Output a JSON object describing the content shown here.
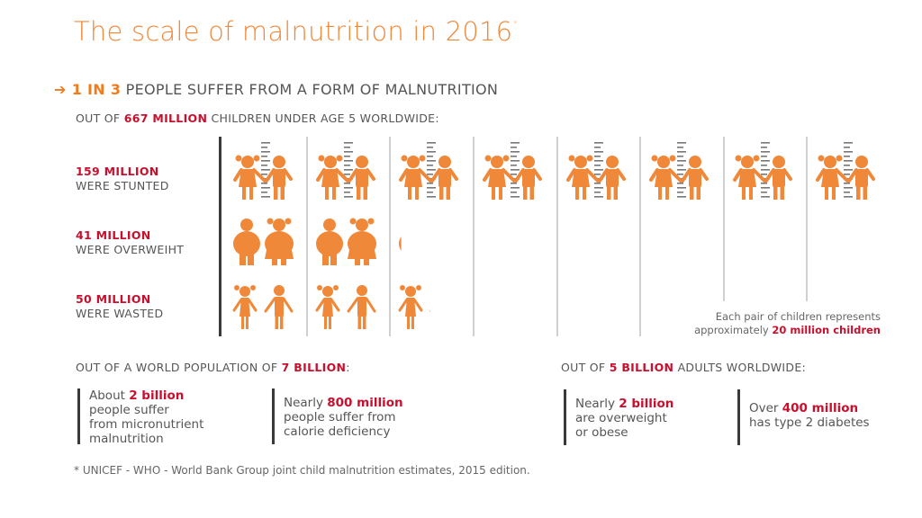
{
  "title": {
    "text": "The scale of malnutrition in 2016",
    "marker": "*"
  },
  "headline": {
    "arrow_icon": "arrow-right-icon",
    "highlight": "1 IN 3",
    "rest": " PEOPLE SUFFER FROM A FORM OF MALNUTRITION"
  },
  "children_section": {
    "prefix": "OUT OF ",
    "highlight": "667 MILLION",
    "suffix": " CHILDREN UNDER AGE 5 WORLDWIDE:",
    "rows": [
      {
        "value": "159 MILLION",
        "label": "WERE STUNTED",
        "pairs": 7.95,
        "icon": "child-pair-height-chart-icon"
      },
      {
        "value": "41 MILLION",
        "label": "WERE OVERWEIHT",
        "pairs": 2.05,
        "icon": "overweight-child-pair-icon"
      },
      {
        "value": "50 MILLION",
        "label": "WERE WASTED",
        "pairs": 2.5,
        "icon": "thin-child-pair-icon"
      }
    ],
    "note_line1": "Each pair of children represents",
    "note_prefix": "approximately ",
    "note_highlight": "20 million children"
  },
  "world_section": {
    "prefix": "OUT OF A WORLD POPULATION OF ",
    "highlight": "7 BILLION",
    "suffix": ":",
    "stats": [
      {
        "lead": "About ",
        "highlight": "2 billion",
        "lines": [
          "people suffer",
          "from micronutrient",
          "malnutrition"
        ]
      },
      {
        "lead": "Nearly ",
        "highlight": "800 million",
        "lines": [
          "people suffer from",
          "calorie deficiency"
        ]
      }
    ]
  },
  "adult_section": {
    "prefix": "OUT OF ",
    "highlight": "5 BILLION",
    "suffix": " ADULTS WORLDWIDE:",
    "stats": [
      {
        "lead": "Nearly ",
        "highlight": "2 billion",
        "lines": [
          "are overweight",
          "or obese"
        ]
      },
      {
        "lead": "Over ",
        "highlight": "400 million",
        "lines": [
          "has type 2 diabetes"
        ]
      }
    ]
  },
  "footnote": "* UNICEF - WHO - World Bank Group joint child malnutrition estimates, 2015 edition.",
  "colors": {
    "orange": "#f0883a",
    "red": "#c8102e",
    "text": "#555555",
    "axis": "#3a3a3a",
    "separator": "#d0d0d0"
  }
}
